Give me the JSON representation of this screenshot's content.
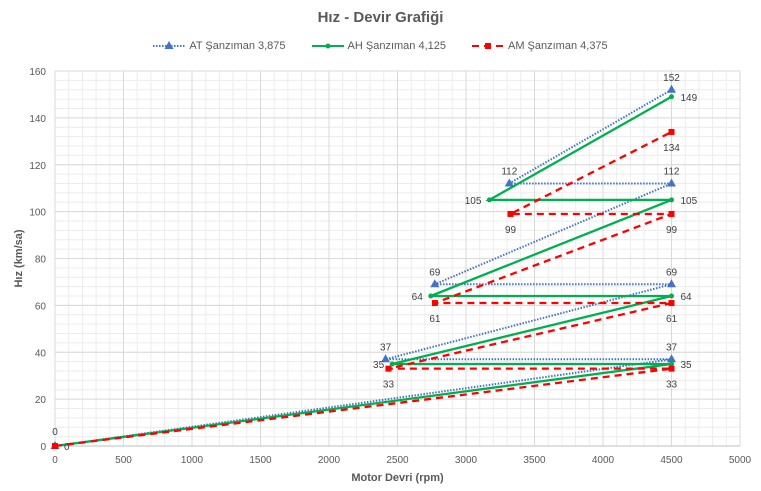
{
  "chart_data": {
    "type": "line",
    "title": "Hız - Devir Grafiği",
    "xlabel": "Motor Devri (rpm)",
    "ylabel": "Hız (km/sa)",
    "xlim": [
      0,
      5000
    ],
    "ylim": [
      0,
      160
    ],
    "xticks": [
      0,
      500,
      1000,
      1500,
      2000,
      2500,
      3000,
      3500,
      4000,
      4500,
      5000
    ],
    "yticks": [
      0,
      20,
      40,
      60,
      80,
      100,
      120,
      140,
      160
    ],
    "grid": true,
    "legend_position": "top",
    "series": [
      {
        "name": "AT Şanzıman 3,875",
        "color": "#4472C4",
        "style": "dotted",
        "marker": "triangle",
        "label_pos": "above",
        "x": [
          0,
          4500,
          2413,
          4500,
          2772,
          4500,
          3316,
          4500
        ],
        "y": [
          0,
          37,
          37,
          69,
          69,
          112,
          112,
          152
        ],
        "labels": [
          "0",
          "37",
          "37",
          "69",
          "69",
          "112",
          "112",
          "152"
        ]
      },
      {
        "name": "AH Şanzıman 4,125",
        "color": "#00B050",
        "style": "solid",
        "marker": "circle",
        "label_pos": "side",
        "x": [
          0,
          4500,
          2461,
          4500,
          2743,
          4500,
          3171,
          4500
        ],
        "y": [
          0,
          35,
          35,
          64,
          64,
          105,
          105,
          149
        ],
        "labels": [
          "0",
          "35",
          "35",
          "64",
          "64",
          "105",
          "105",
          "149"
        ]
      },
      {
        "name": "AM Şanzıman 4,375",
        "color": "#FF0000",
        "style": "dashed",
        "marker": "square",
        "label_pos": "below",
        "x": [
          0,
          4500,
          2434,
          4500,
          2773,
          4500,
          3325,
          4500
        ],
        "y": [
          0,
          33,
          33,
          61,
          61,
          99,
          99,
          134
        ],
        "labels": [
          "",
          "33",
          "33",
          "61",
          "61",
          "99",
          "99",
          "134"
        ]
      }
    ]
  }
}
